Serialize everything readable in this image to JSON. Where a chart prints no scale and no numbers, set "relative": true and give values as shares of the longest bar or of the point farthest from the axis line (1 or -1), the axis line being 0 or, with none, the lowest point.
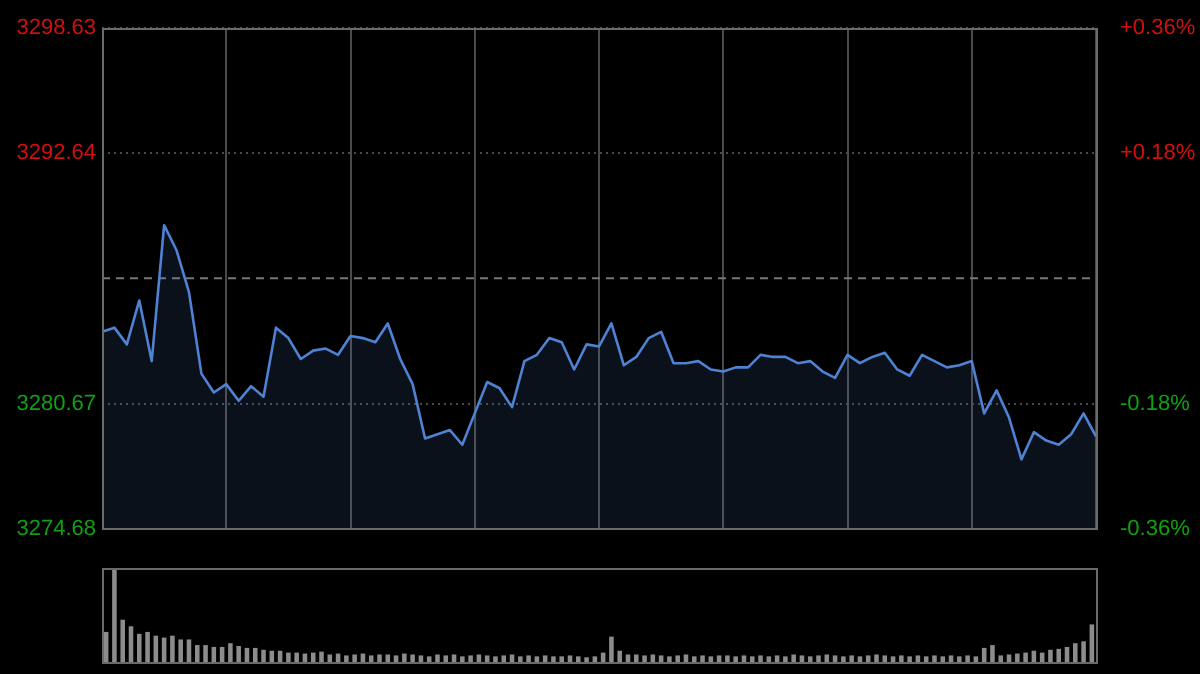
{
  "chart_data": [
    {
      "type": "area",
      "grid": true,
      "marker": "none",
      "categories": [
        null,
        null,
        null,
        null,
        null,
        null,
        null,
        null,
        null,
        null,
        null,
        null,
        null,
        null,
        null,
        null,
        null,
        null,
        null,
        null,
        null,
        null,
        null,
        null,
        null,
        null,
        null,
        null,
        null,
        null,
        null,
        null,
        null,
        null,
        null,
        null,
        null,
        null,
        null,
        null,
        null,
        null,
        null,
        null,
        null,
        null,
        null,
        null,
        null,
        null,
        null,
        null,
        null,
        null,
        null,
        null,
        null,
        null,
        null,
        null,
        null,
        null,
        null,
        null,
        null,
        null,
        null,
        null,
        null,
        null,
        null,
        null,
        null,
        null,
        null,
        null,
        null,
        null,
        null,
        null,
        null
      ],
      "ylim": [
        3274.68,
        3298.63
      ],
      "yticks": [
        3274.68,
        3280.67,
        3292.64,
        3298.63
      ],
      "y2lim": [
        -0.36,
        0.36
      ],
      "y2ticks": [
        {
          "value": -0.36,
          "label": "-0.36%"
        },
        {
          "value": -0.18,
          "label": "-0.18%"
        },
        {
          "value": 0.18,
          "label": "+0.18%"
        },
        {
          "value": 0.36,
          "label": "+0.36%"
        }
      ],
      "ref_lines": [
        {
          "axis": "y",
          "value": 3286.66,
          "label": null,
          "color": "#777777",
          "line_style": "dashed"
        }
      ],
      "series": [
        {
          "color": "#4f82d2",
          "values": [
            3284.1,
            3284.3,
            3283.5,
            3285.6,
            3282.7,
            3289.2,
            3288.0,
            3286.0,
            3282.1,
            3281.2,
            3281.6,
            3280.8,
            3281.5,
            3281.0,
            3284.3,
            3283.8,
            3282.8,
            3283.2,
            3283.3,
            3283.0,
            3283.9,
            3283.8,
            3283.6,
            3284.5,
            3282.8,
            3281.6,
            3279.0,
            3279.2,
            3279.4,
            3278.7,
            3280.2,
            3281.7,
            3281.4,
            3280.5,
            3282.7,
            3283.0,
            3283.8,
            3283.6,
            3282.3,
            3283.5,
            3283.4,
            3284.5,
            3282.5,
            3282.9,
            3283.8,
            3284.1,
            3282.6,
            3282.6,
            3282.7,
            3282.3,
            3282.2,
            3282.4,
            3282.4,
            3283.0,
            3282.9,
            3282.9,
            3282.6,
            3282.7,
            3282.2,
            3281.9,
            3283.0,
            3282.6,
            3282.9,
            3283.1,
            3282.3,
            3282.0,
            3283.0,
            3282.7,
            3282.4,
            3282.5,
            3282.7,
            3280.2,
            3281.3,
            3280.0,
            3278.0,
            3279.3,
            3278.9,
            3278.7,
            3279.2,
            3280.2,
            3279.1
          ]
        }
      ]
    },
    {
      "type": "bar",
      "relative": true,
      "color": "#8c8c8c",
      "categories": [
        null,
        null,
        null,
        null,
        null,
        null,
        null,
        null,
        null,
        null,
        null,
        null,
        null,
        null,
        null,
        null,
        null,
        null,
        null,
        null,
        null,
        null,
        null,
        null,
        null,
        null,
        null,
        null,
        null,
        null,
        null,
        null,
        null,
        null,
        null,
        null,
        null,
        null,
        null,
        null,
        null,
        null,
        null,
        null,
        null,
        null,
        null,
        null,
        null,
        null,
        null,
        null,
        null,
        null,
        null,
        null,
        null,
        null,
        null,
        null,
        null,
        null,
        null,
        null,
        null,
        null,
        null,
        null,
        null,
        null,
        null,
        null,
        null,
        null,
        null,
        null,
        null,
        null,
        null,
        null,
        null,
        null,
        null,
        null,
        null,
        null,
        null,
        null,
        null,
        null,
        null,
        null,
        null,
        null,
        null,
        null,
        null,
        null,
        null,
        null,
        null,
        null,
        null,
        null,
        null,
        null,
        null,
        null,
        null,
        null,
        null,
        null,
        null,
        null,
        null,
        null,
        null,
        null,
        null,
        null
      ],
      "values": [
        0.32,
        1,
        0.45,
        0.38,
        0.3,
        0.32,
        0.28,
        0.26,
        0.28,
        0.24,
        0.24,
        0.18,
        0.18,
        0.16,
        0.16,
        0.2,
        0.17,
        0.15,
        0.15,
        0.13,
        0.12,
        0.12,
        0.1,
        0.1,
        0.09,
        0.1,
        0.11,
        0.08,
        0.09,
        0.07,
        0.08,
        0.09,
        0.07,
        0.08,
        0.08,
        0.07,
        0.09,
        0.08,
        0.07,
        0.06,
        0.08,
        0.07,
        0.08,
        0.06,
        0.07,
        0.08,
        0.07,
        0.06,
        0.07,
        0.08,
        0.06,
        0.07,
        0.06,
        0.07,
        0.06,
        0.06,
        0.07,
        0.06,
        0.05,
        0.06,
        0.1,
        0.27,
        0.12,
        0.08,
        0.08,
        0.07,
        0.08,
        0.07,
        0.06,
        0.07,
        0.08,
        0.06,
        0.07,
        0.06,
        0.07,
        0.07,
        0.06,
        0.07,
        0.06,
        0.07,
        0.06,
        0.07,
        0.06,
        0.08,
        0.07,
        0.06,
        0.07,
        0.08,
        0.07,
        0.06,
        0.07,
        0.06,
        0.07,
        0.08,
        0.07,
        0.06,
        0.07,
        0.06,
        0.07,
        0.06,
        0.07,
        0.06,
        0.07,
        0.06,
        0.07,
        0.06,
        0.15,
        0.18,
        0.07,
        0.08,
        0.09,
        0.1,
        0.12,
        0.1,
        0.13,
        0.14,
        0.16,
        0.2,
        0.22,
        0.4
      ]
    }
  ]
}
